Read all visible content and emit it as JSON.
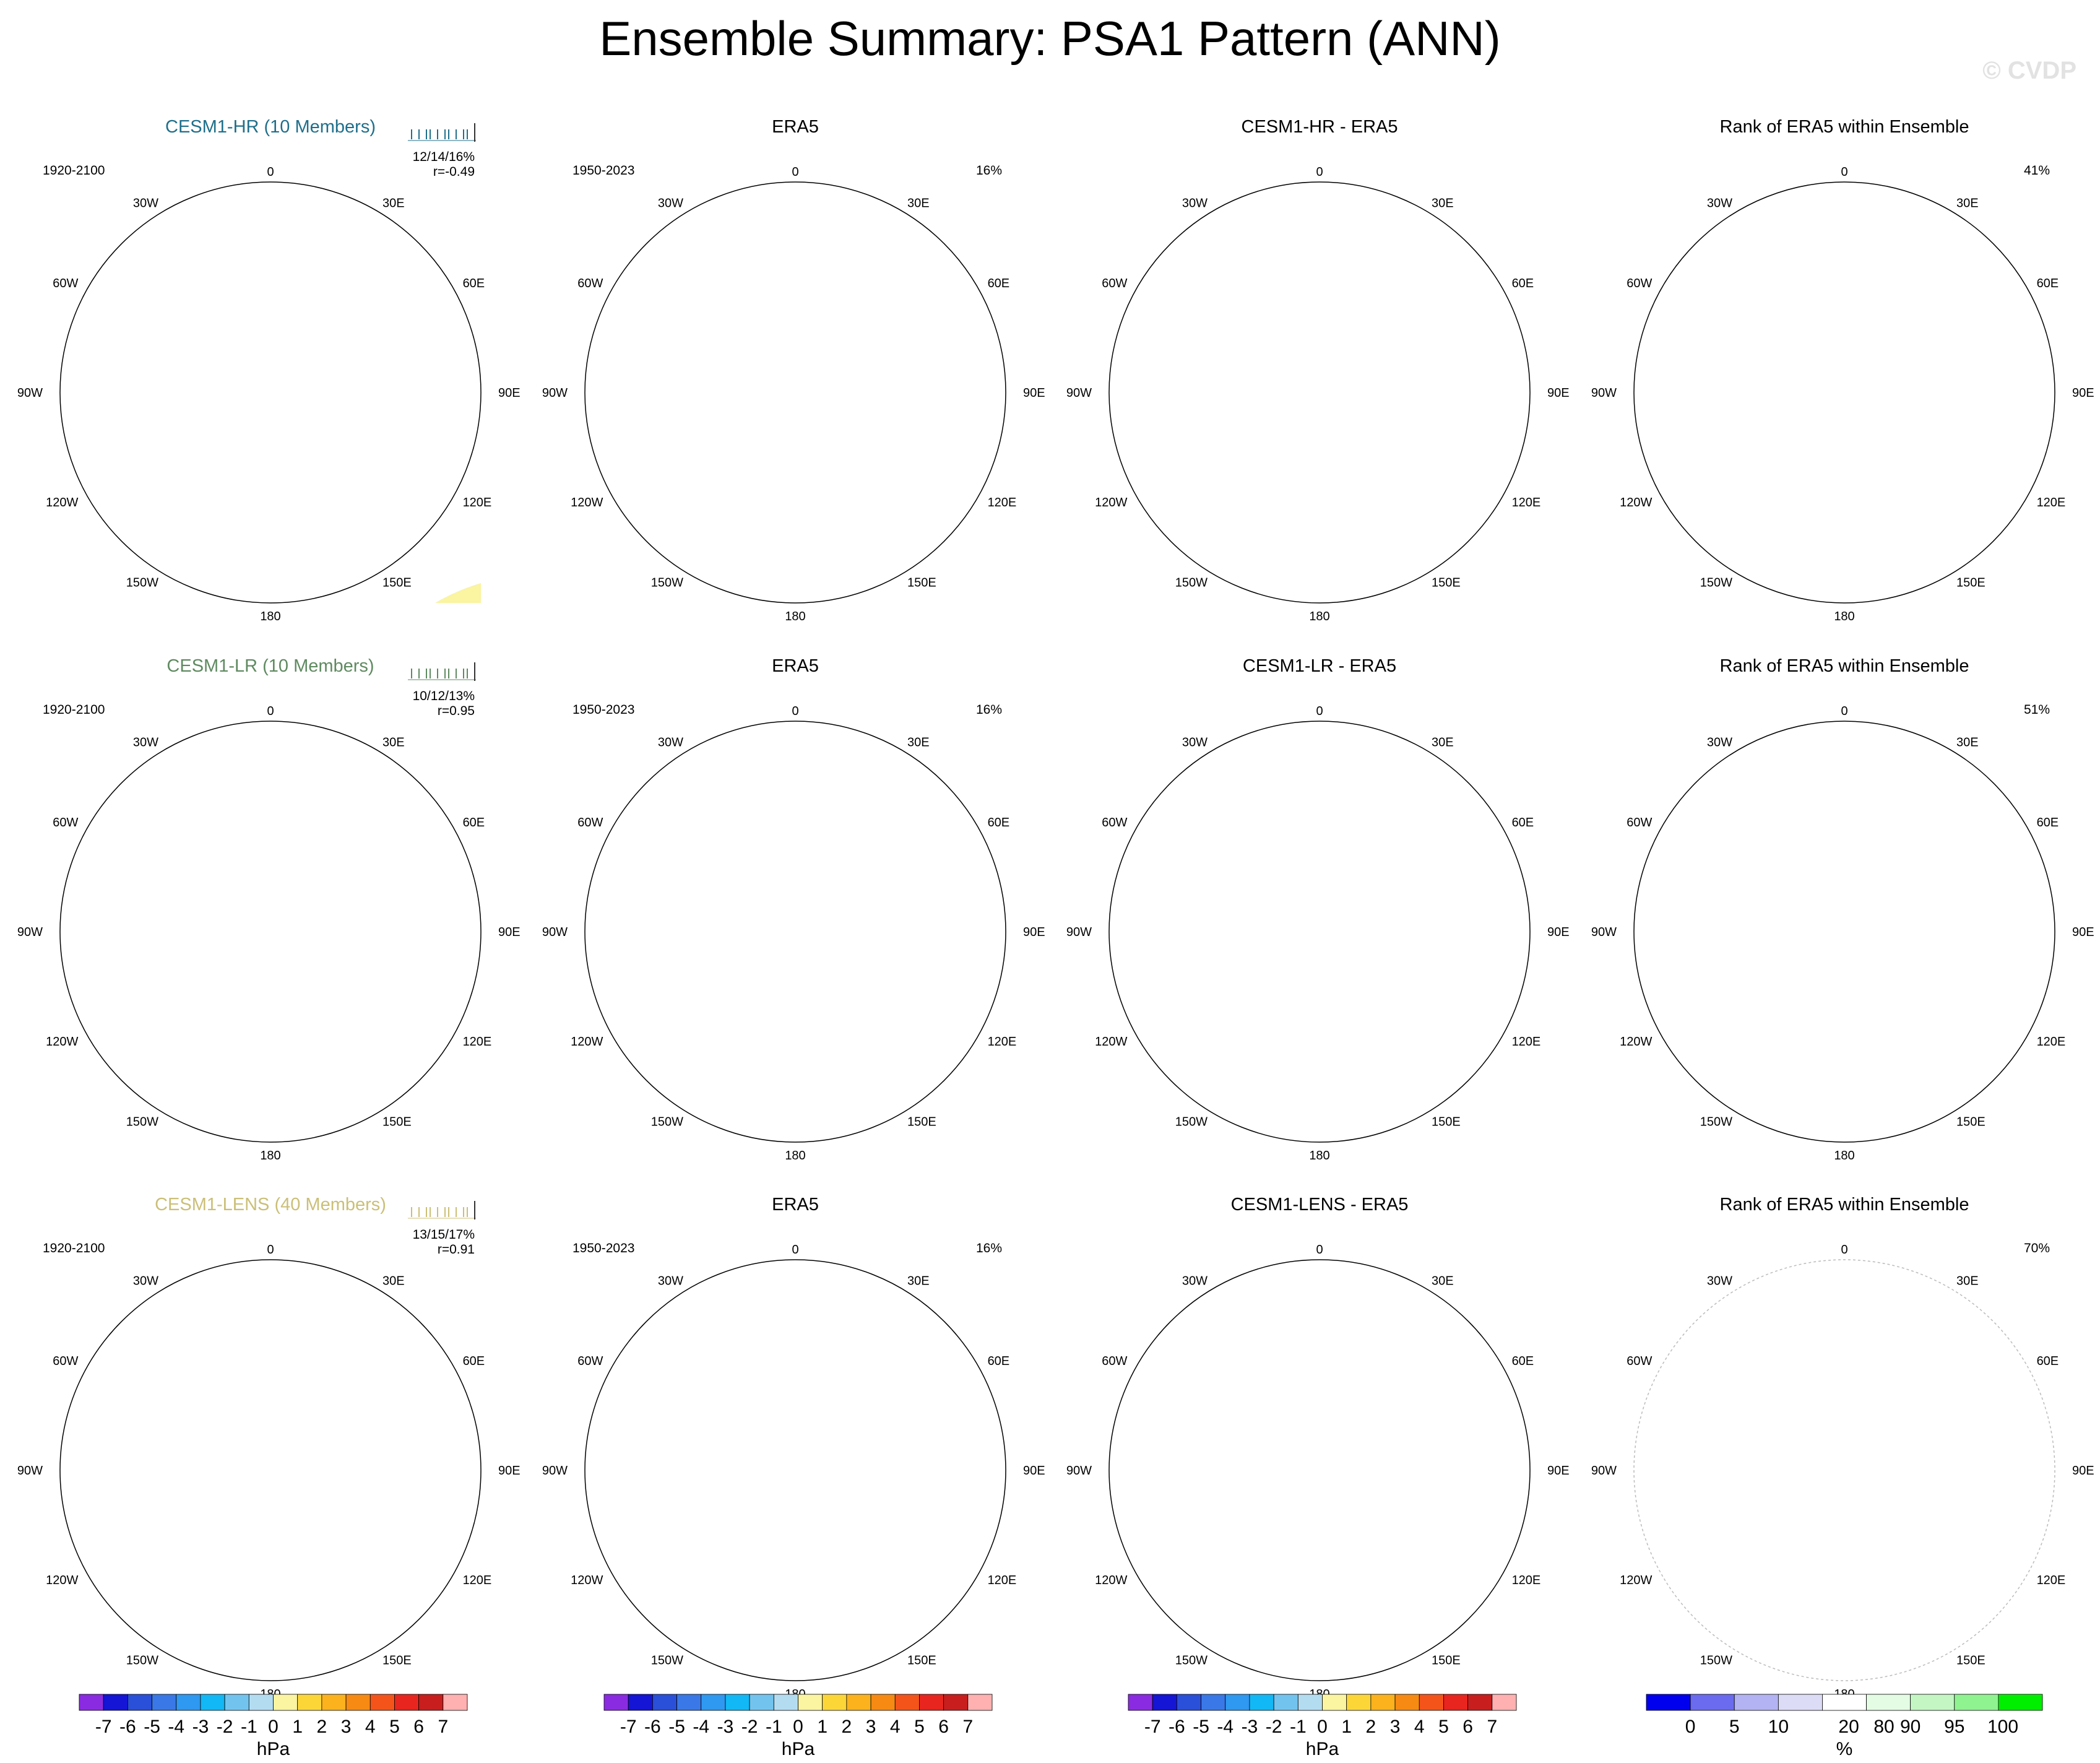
{
  "title": "Ensemble Summary: PSA1 Pattern (ANN)",
  "watermark": "© CVDP",
  "colors": {
    "neg_weak": "#b3dcf1",
    "neg_mid": "#72c4ef",
    "neg_strong": "#4aa3e6",
    "pos_weak": "#fbf4a0",
    "pos_mid": "#fcd637",
    "pos_strong": "#fbb21c",
    "pos_max": "#f58f16",
    "rank_blue": "#0000ee",
    "rank_lav": "#dcdcf6",
    "rank_white": "#ffffff",
    "rank_lgreen": "#c3f6c3",
    "rank_green": "#00ee00",
    "model_hr": "#1f6f8b",
    "model_lr": "#5f8a60",
    "model_lens": "#cbbf77",
    "coast": "#808080"
  },
  "map_labels": {
    "top": "0",
    "bottom": "180",
    "left": [
      "30W",
      "60W",
      "90W",
      "120W",
      "150W"
    ],
    "right": [
      "30E",
      "60E",
      "90E",
      "120E",
      "150E"
    ]
  },
  "rows": [
    {
      "model": "CESM1-HR (10 Members)",
      "model_color": "#1f6f8b",
      "period": "1920-2100",
      "pct": "12/14/16%",
      "r": "r=-0.49",
      "obs_title": "ERA5",
      "obs_period": "1950-2023",
      "obs_pct": "16%",
      "diff_title": "CESM1-HR - ERA5",
      "rank_title": "Rank of ERA5 within Ensemble",
      "rank_pct": "41%"
    },
    {
      "model": "CESM1-LR (10 Members)",
      "model_color": "#5f8a60",
      "period": "1920-2100",
      "pct": "10/12/13%",
      "r": "r=0.95",
      "obs_title": "ERA5",
      "obs_period": "1950-2023",
      "obs_pct": "16%",
      "diff_title": "CESM1-LR - ERA5",
      "rank_title": "Rank of ERA5 within Ensemble",
      "rank_pct": "51%"
    },
    {
      "model": "CESM1-LENS (40 Members)",
      "model_color": "#cbbf77",
      "period": "1920-2100",
      "pct": "13/15/17%",
      "r": "r=0.91",
      "obs_title": "ERA5",
      "obs_period": "1950-2023",
      "obs_pct": "16%",
      "diff_title": "CESM1-LENS - ERA5",
      "rank_title": "Rank of ERA5 within Ensemble",
      "rank_pct": "70%"
    }
  ],
  "chart_data": [
    {
      "type": "colorbar",
      "unit": "hPa",
      "ticks": [
        "-7",
        "-6",
        "-5",
        "-4",
        "-3",
        "-2",
        "-1",
        "0",
        "1",
        "2",
        "3",
        "4",
        "5",
        "6",
        "7"
      ],
      "colors": [
        "#8a2be2",
        "#1515d6",
        "#2a4fd8",
        "#3978e6",
        "#2f98f0",
        "#12b8f5",
        "#72c4ef",
        "#b3dcf1",
        "#fbf4a0",
        "#fcd637",
        "#fbb21c",
        "#f78a12",
        "#f4541a",
        "#e8251e",
        "#c81e1e",
        "#ffb0b0"
      ]
    },
    {
      "type": "colorbar",
      "unit": "%",
      "ticks": [
        "0",
        "5",
        "10",
        "20",
        "80",
        "90",
        "95",
        "100"
      ],
      "colors": [
        "#0000ee",
        "#6b6bf0",
        "#b3b3f3",
        "#dcdcf6",
        "#ffffff",
        "#e4fbe4",
        "#c3f6c3",
        "#8ff38f",
        "#00ee00"
      ]
    }
  ]
}
